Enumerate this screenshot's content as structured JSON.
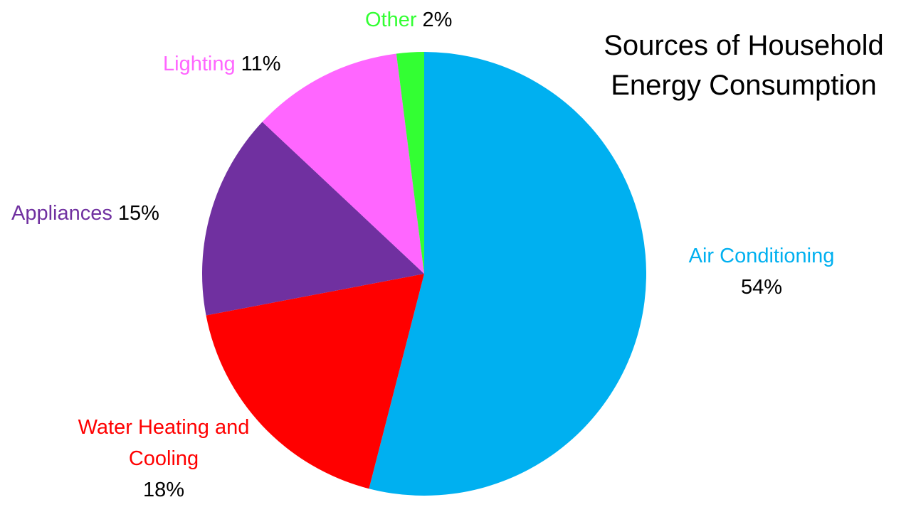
{
  "chart_data": {
    "type": "pie",
    "title": "Sources of Household Energy Consumption",
    "categories": [
      "Air Conditioning",
      "Water Heating and Cooling",
      "Appliances",
      "Lighting",
      "Other"
    ],
    "values": [
      54,
      18,
      15,
      11,
      2
    ],
    "value_labels": [
      "54%",
      "18%",
      "15%",
      "11%",
      "2%"
    ],
    "colors": [
      "#00b0f0",
      "#ff0000",
      "#7030a0",
      "#ff66ff",
      "#33ff33"
    ]
  }
}
